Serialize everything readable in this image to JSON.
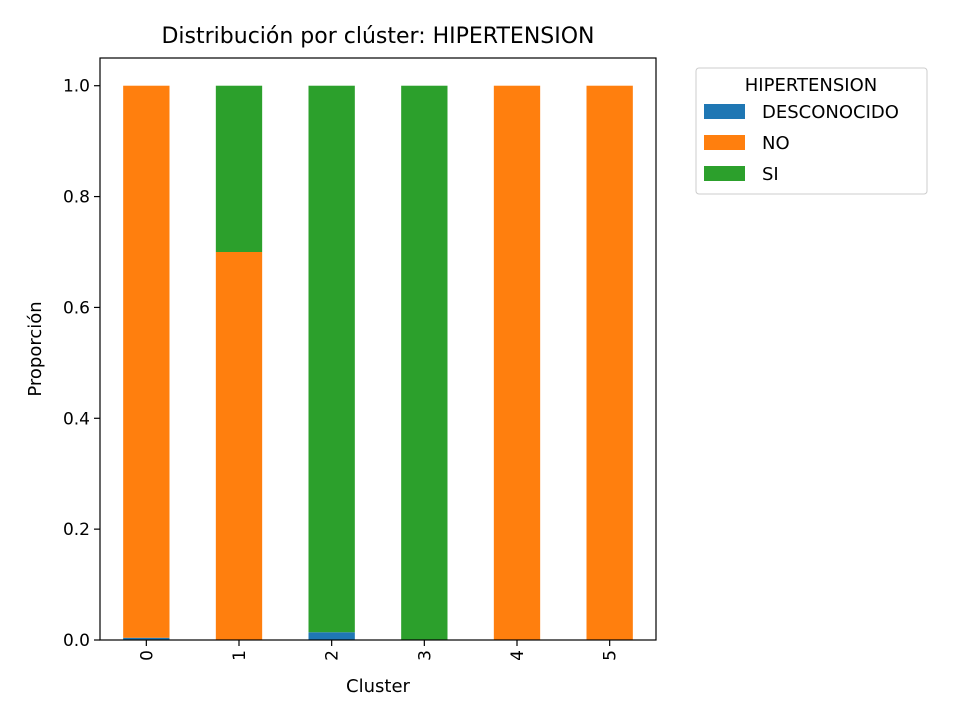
{
  "chart_data": {
    "type": "bar",
    "stacked": true,
    "title": "Distribución por clúster: HIPERTENSION",
    "xlabel": "Cluster",
    "ylabel": "Proporción",
    "categories": [
      "0",
      "1",
      "2",
      "3",
      "4",
      "5"
    ],
    "series": [
      {
        "name": "DESCONOCIDO",
        "color": "#1f77b4",
        "values": [
          0.004,
          0.0,
          0.014,
          0.0,
          0.0,
          0.0
        ]
      },
      {
        "name": "NO",
        "color": "#ff7f0e",
        "values": [
          0.996,
          0.7,
          0.0,
          0.0,
          1.0,
          1.0
        ]
      },
      {
        "name": "SI",
        "color": "#2ca02c",
        "values": [
          0.0,
          0.3,
          0.986,
          1.0,
          0.0,
          0.0
        ]
      }
    ],
    "ylim": [
      0,
      1.05
    ],
    "yticks": [
      "0.0",
      "0.2",
      "0.4",
      "0.6",
      "0.8",
      "1.0"
    ],
    "legend": {
      "title": "HIPERTENSION",
      "placement": "outside-top-right"
    },
    "grid": false
  }
}
